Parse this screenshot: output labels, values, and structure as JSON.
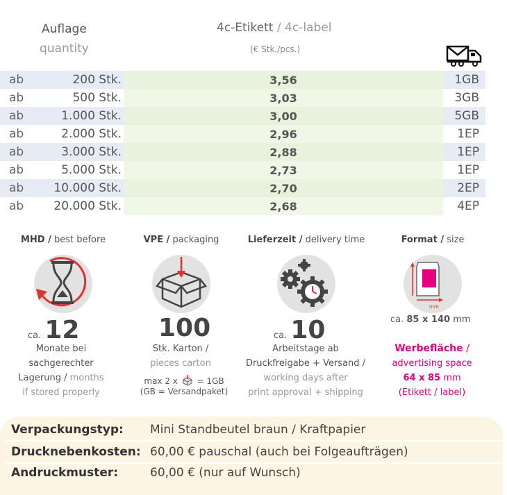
{
  "table": {
    "quantity_label": "Auflage",
    "quantity_label_en": "quantity",
    "price_label": "4c-Etikett",
    "price_label_sep": " / ",
    "price_label_en": "4c-label",
    "price_unit": "(€ Stk./pcs.)",
    "shipping_icon": "truck-mail-icon",
    "rows": [
      {
        "prefix": "ab",
        "quantity": "200 Stk.",
        "price": "3,56",
        "shipping": "1GB"
      },
      {
        "prefix": "ab",
        "quantity": "500 Stk.",
        "price": "3,03",
        "shipping": "3GB"
      },
      {
        "prefix": "ab",
        "quantity": "1.000 Stk.",
        "price": "3,00",
        "shipping": "5GB"
      },
      {
        "prefix": "ab",
        "quantity": "2.000 Stk.",
        "price": "2,96",
        "shipping": "1EP"
      },
      {
        "prefix": "ab",
        "quantity": "3.000 Stk.",
        "price": "2,88",
        "shipping": "1EP"
      },
      {
        "prefix": "ab",
        "quantity": "5.000 Stk.",
        "price": "2,73",
        "shipping": "1EP"
      },
      {
        "prefix": "ab",
        "quantity": "10.000 Stk.",
        "price": "2,70",
        "shipping": "2EP"
      },
      {
        "prefix": "ab",
        "quantity": "20.000 Stk.",
        "price": "2,68",
        "shipping": "4EP"
      }
    ]
  },
  "features": {
    "mhd": {
      "title": "MHD /",
      "title_en": " best before",
      "ca": "ca.",
      "value": "12",
      "text1": "Monate bei",
      "text2": "sachgerechter",
      "text3a": "Lagerung /",
      "text3b": " months",
      "text4": "if stored properly",
      "icon": "hourglass-icon"
    },
    "vpe": {
      "title": "VPE /",
      "title_en": " packaging",
      "value": "100",
      "text1": "Stk. Karton /",
      "text2": "pieces carton",
      "text3a": "max 2 x",
      "text3b": "= 1GB",
      "text4": "(GB = Versandpaket)",
      "icon": "box-icon"
    },
    "lieferzeit": {
      "title": "Lieferzeit /",
      "title_en": " delivery time",
      "ca": "ca.",
      "value": "10",
      "text1": "Arbeitstage ab",
      "text2": "Druckfreigabe + Versand /",
      "text3": "working days after",
      "text4": "print approval + shipping",
      "icon": "gears-clock-icon"
    },
    "format": {
      "title": "Format /",
      "title_en": " size",
      "size_prefix": "ca.",
      "size_value": "85 x 140",
      "size_unit": "mm",
      "adv_title": "Werbefläche",
      "adv_sep": " /",
      "adv_en": "advertising space",
      "adv_value": "64 x 85",
      "adv_unit": " mm",
      "adv_note": "(Etikett / label)",
      "mm_label": "mm",
      "icon": "pouch-format-icon"
    }
  },
  "info": {
    "rows": [
      {
        "label": "Verpackungstyp:",
        "value": "Mini Standbeutel braun / Kraftpapier"
      },
      {
        "label": "Drucknebenkosten:",
        "value": "60,00 € pauschal (auch bei Folgeaufträgen)"
      },
      {
        "label": "Andruckmuster:",
        "value": "60,00 € (nur auf Wunsch)"
      }
    ]
  },
  "colors": {
    "accent_pink": "#e6007e",
    "row_shade": "#e7ebf5",
    "price_green": "#e9f2dd",
    "info_bg": "#fbf6e4",
    "arrow_red": "#e2312b"
  }
}
